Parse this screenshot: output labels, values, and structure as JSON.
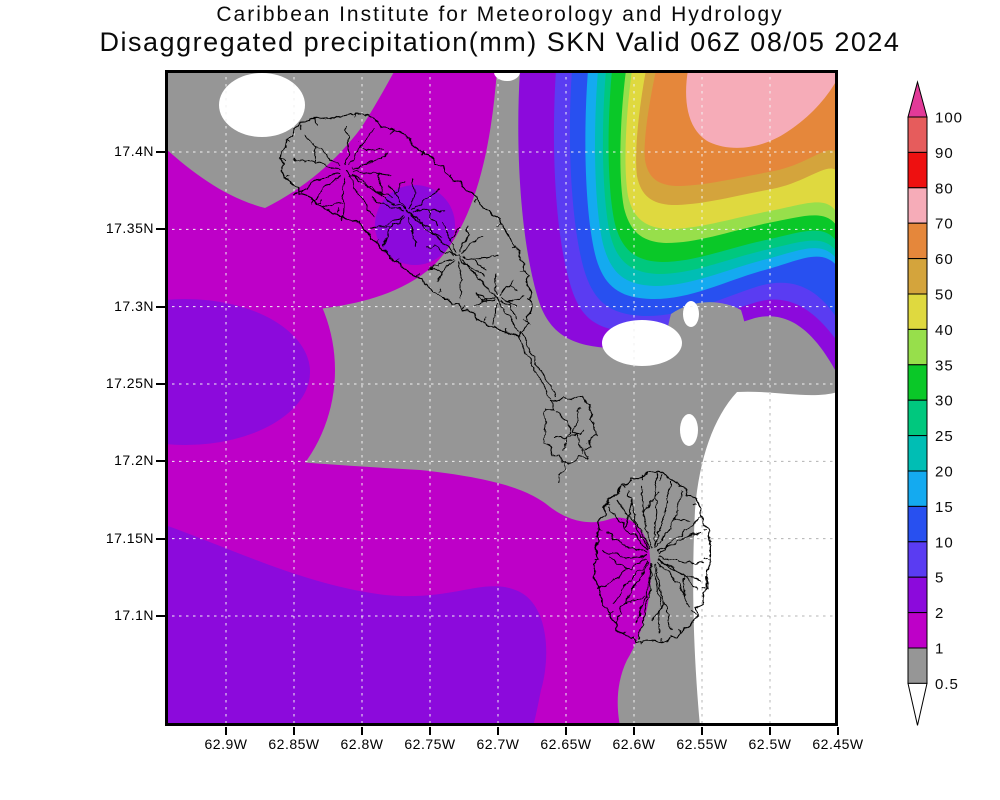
{
  "title": {
    "line1": "Caribbean Institute for Meteorology and Hydrology",
    "line2": "Disaggregated precipitation(mm) SKN Valid 06Z 08/05 2024"
  },
  "axes": {
    "lat_labels": [
      "17.4N",
      "17.35N",
      "17.3N",
      "17.25N",
      "17.2N",
      "17.15N",
      "17.1N"
    ],
    "lon_labels": [
      "62.9W",
      "62.85W",
      "62.8W",
      "62.75W",
      "62.7W",
      "62.65W",
      "62.6W",
      "62.55W",
      "62.5W",
      "62.45W"
    ]
  },
  "colorbar": {
    "labels": [
      "100",
      "90",
      "80",
      "70",
      "60",
      "50",
      "40",
      "35",
      "30",
      "25",
      "20",
      "15",
      "10",
      "5",
      "2",
      "1",
      "0.5"
    ],
    "segment_colors": [
      "#E65C5C",
      "#EE1010",
      "#F6ACB8",
      "#E5873B",
      "#D4A43C",
      "#DFD93F",
      "#97DF4B",
      "#0AC828",
      "#00C87E",
      "#00BEB4",
      "#14AAF0",
      "#2850F0",
      "#5A3CF2",
      "#8C0ADC",
      "#BE00C8",
      "#969696"
    ],
    "over_color": "#E23A98",
    "under_color": "#FFFFFF"
  },
  "palette": {
    "gray": "#969696",
    "magenta": "#BE00C8",
    "purple": "#8C0ADC",
    "blueviolet": "#5A3CF2",
    "blue": "#2850F0",
    "lightblue": "#14AAF0",
    "teal": "#00BEB4",
    "spring": "#00C87E",
    "green": "#0AC828",
    "ygreen": "#97DF4B",
    "yellow": "#DFD93F",
    "tan": "#D4A43C",
    "orange": "#E5873B",
    "pink": "#F6ACB8",
    "white": "#FFFFFF",
    "grid_white": "#F2F2F2",
    "grid_gray": "#B4B4B4"
  },
  "chart_data": {
    "type": "contour-map",
    "variable": "Disaggregated precipitation",
    "units": "mm",
    "region": "SKN",
    "valid_time": "06Z 08/05 2024",
    "source": "Caribbean Institute for Meteorology and Hydrology",
    "contour_levels": [
      0.5,
      1,
      2,
      5,
      10,
      15,
      20,
      25,
      30,
      35,
      40,
      50,
      60,
      70,
      80,
      90,
      100
    ],
    "lat_ticks": [
      17.4,
      17.35,
      17.3,
      17.25,
      17.2,
      17.15,
      17.1
    ],
    "lon_ticks": [
      -62.9,
      -62.85,
      -62.8,
      -62.75,
      -62.7,
      -62.65,
      -62.6,
      -62.55,
      -62.5,
      -62.45
    ],
    "lat_range": [
      17.03,
      17.45
    ],
    "lon_range": [
      -62.945,
      -62.45
    ],
    "grid": "dashed",
    "legend_position": "right",
    "features": [
      "St. Kitts coastline with drainage network",
      "Nevis coastline with radial drainage network",
      "southeast peninsula islets"
    ]
  }
}
